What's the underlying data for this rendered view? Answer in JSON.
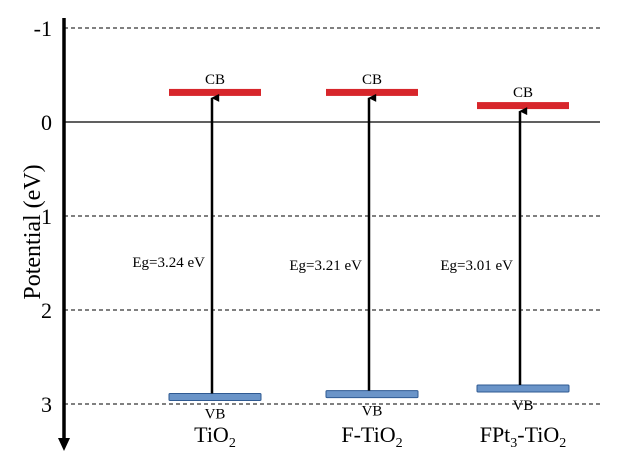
{
  "chart_data": {
    "type": "band-diagram",
    "ylabel": "Potential (eV)",
    "y_axis_direction": "down",
    "ylim": [
      -1.15,
      3.55
    ],
    "ticks": [
      {
        "value": -1,
        "label": "-1"
      },
      {
        "value": 0,
        "label": "0"
      },
      {
        "value": 1,
        "label": "1"
      },
      {
        "value": 2,
        "label": "2"
      },
      {
        "value": 3,
        "label": "3"
      }
    ],
    "dashed_gridlines": [
      -1,
      1,
      2,
      3
    ],
    "solid_line": 0,
    "samples": [
      {
        "label_main": "TiO",
        "label_sub": "2",
        "label_rest": "",
        "cb": -0.32,
        "vb": 2.92,
        "gap_label": "Eg=3.24 eV",
        "cb_label": "CB",
        "vb_label": "VB"
      },
      {
        "label_main": "F-TiO",
        "label_sub": "2",
        "label_rest": "",
        "cb": -0.32,
        "vb": 2.89,
        "gap_label": "Eg=3.21 eV",
        "cb_label": "CB",
        "vb_label": "VB"
      },
      {
        "label_main": "FPt",
        "label_sub": "3",
        "label_rest": "-TiO",
        "label_sub2": "2",
        "cb": -0.18,
        "vb": 2.83,
        "gap_label": "Eg=3.01 eV",
        "cb_label": "CB",
        "vb_label": "VB"
      }
    ],
    "colors": {
      "cb_band": "#d7262b",
      "vb_band_fill": "#6a94c8",
      "vb_band_stroke": "#2f5a92",
      "axis": "#000000"
    }
  }
}
